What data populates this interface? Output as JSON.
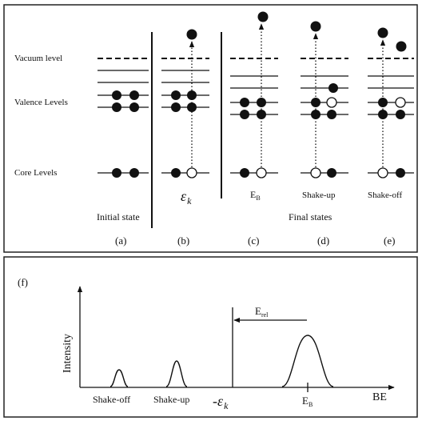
{
  "top_panel": {
    "row_labels": {
      "vacuum": "Vacuum level",
      "valence": "Valence Levels",
      "core": "Core Levels"
    },
    "energy_labels": {
      "b": "ε",
      "b_sub": "k",
      "c": "E",
      "c_sub": "B",
      "d": "Shake-up",
      "e": "Shake-off"
    },
    "group_labels": {
      "initial": "Initial state",
      "final": "Final states"
    },
    "panel_labels": [
      "(a)",
      "(b)",
      "(c)",
      "(d)",
      "(e)"
    ]
  },
  "bottom_panel": {
    "label": "(f)",
    "y_axis_label": "Intensity",
    "x_axis_label": "BE",
    "peaks": {
      "shake_off": "Shake-off",
      "shake_up": "Shake-up",
      "minus": "-",
      "eps": "ε",
      "eps_sub": "k",
      "eb": "E",
      "eb_sub": "B"
    },
    "erel": "E",
    "erel_sub": "rel"
  },
  "colors": {
    "line": "#111111",
    "border": "#222222"
  }
}
